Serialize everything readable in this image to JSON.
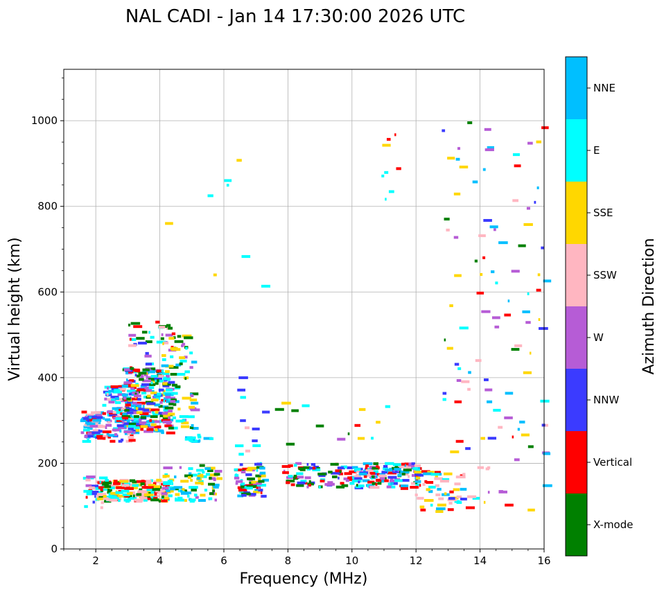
{
  "chart_data": {
    "type": "scatter",
    "title": "NAL CADI - Jan 14 17:30:00 2026 UTC",
    "xlabel": "Frequency (MHz)",
    "ylabel": "Virtual height (km)",
    "xlim": [
      1,
      16
    ],
    "ylim": [
      0,
      1120
    ],
    "xticks": [
      2,
      4,
      6,
      8,
      10,
      12,
      14,
      16
    ],
    "yticks": [
      0,
      200,
      400,
      600,
      800,
      1000
    ],
    "grid": true,
    "colorbar": {
      "label": "Azimuth Direction",
      "categories": [
        {
          "name": "X-mode",
          "color": "#008000"
        },
        {
          "name": "Vertical",
          "color": "#ff0000"
        },
        {
          "name": "NNW",
          "color": "#3b3bff"
        },
        {
          "name": "W",
          "color": "#b65cd6"
        },
        {
          "name": "SSW",
          "color": "#ffb6c1"
        },
        {
          "name": "SSE",
          "color": "#ffd700"
        },
        {
          "name": "E",
          "color": "#00ffff"
        },
        {
          "name": "NNE",
          "color": "#00bfff"
        }
      ]
    },
    "clusters": [
      {
        "x": [
          1.5,
          2.1
        ],
        "y": [
          250,
          320
        ],
        "n": 60,
        "cats": [
          "E",
          "NNE",
          "NNW",
          "Vertical",
          "W",
          "SSW"
        ]
      },
      {
        "x": [
          2.2,
          3.1
        ],
        "y": [
          250,
          380
        ],
        "n": 120,
        "cats": [
          "Vertical",
          "NNW",
          "E",
          "NNE",
          "SSW",
          "W"
        ]
      },
      {
        "x": [
          2.8,
          4.2
        ],
        "y": [
          270,
          420
        ],
        "n": 220,
        "cats": [
          "X-mode",
          "E",
          "NNE",
          "Vertical",
          "NNW",
          "SSE",
          "W"
        ]
      },
      {
        "x": [
          3.0,
          4.4
        ],
        "y": [
          380,
          530
        ],
        "n": 50,
        "cats": [
          "Vertical",
          "NNW",
          "W",
          "X-mode",
          "E",
          "SSW"
        ]
      },
      {
        "x": [
          4.0,
          5.0
        ],
        "y": [
          270,
          500
        ],
        "n": 80,
        "cats": [
          "E",
          "SSE",
          "X-mode",
          "NNE",
          "W"
        ]
      },
      {
        "x": [
          4.6,
          5.6
        ],
        "y": [
          250,
          265
        ],
        "n": 15,
        "cats": [
          "E",
          "NNE"
        ]
      },
      {
        "x": [
          1.5,
          2.2
        ],
        "y": [
          90,
          170
        ],
        "n": 30,
        "cats": [
          "NNW",
          "SSW",
          "Vertical",
          "W",
          "E"
        ]
      },
      {
        "x": [
          2.0,
          4.2
        ],
        "y": [
          110,
          160
        ],
        "n": 160,
        "cats": [
          "SSW",
          "SSE",
          "E",
          "X-mode",
          "Vertical"
        ]
      },
      {
        "x": [
          4.0,
          5.8
        ],
        "y": [
          110,
          195
        ],
        "n": 90,
        "cats": [
          "SSE",
          "E",
          "NNE",
          "X-mode",
          "W"
        ]
      },
      {
        "x": [
          6.3,
          7.2
        ],
        "y": [
          120,
          200
        ],
        "n": 70,
        "cats": [
          "SSE",
          "NNE",
          "E",
          "W",
          "Vertical",
          "X-mode",
          "NNW"
        ]
      },
      {
        "x": [
          7.8,
          10.0
        ],
        "y": [
          140,
          200
        ],
        "n": 80,
        "cats": [
          "W",
          "NNW",
          "Vertical",
          "X-mode",
          "E"
        ]
      },
      {
        "x": [
          10.0,
          12.0
        ],
        "y": [
          140,
          200
        ],
        "n": 130,
        "cats": [
          "NNW",
          "Vertical",
          "W",
          "X-mode",
          "E",
          "NNE",
          "SSW"
        ]
      },
      {
        "x": [
          11.9,
          13.4
        ],
        "y": [
          85,
          180
        ],
        "n": 50,
        "cats": [
          "Vertical",
          "SSE",
          "SSW",
          "NNE",
          "E"
        ]
      },
      {
        "x": [
          6.3,
          7.2
        ],
        "y": [
          200,
          420
        ],
        "n": 12,
        "cats": [
          "SSW",
          "E",
          "NNW"
        ]
      },
      {
        "x": [
          7.5,
          11.5
        ],
        "y": [
          240,
          360
        ],
        "n": 14,
        "cats": [
          "E",
          "SSE",
          "W",
          "Vertical",
          "X-mode"
        ]
      },
      {
        "x": [
          12.8,
          16.0
        ],
        "y": [
          90,
          1000
        ],
        "n": 110,
        "cats": [
          "SSE",
          "SSW",
          "W",
          "NNW",
          "Vertical",
          "E",
          "X-mode",
          "NNE"
        ]
      },
      {
        "x": [
          10.7,
          11.4
        ],
        "y": [
          800,
          990
        ],
        "n": 8,
        "cats": [
          "Vertical",
          "E",
          "NNE",
          "SSE"
        ]
      },
      {
        "x": [
          4.1,
          7.4
        ],
        "y": [
          520,
          940
        ],
        "n": 8,
        "cats": [
          "E",
          "SSE"
        ]
      }
    ]
  }
}
